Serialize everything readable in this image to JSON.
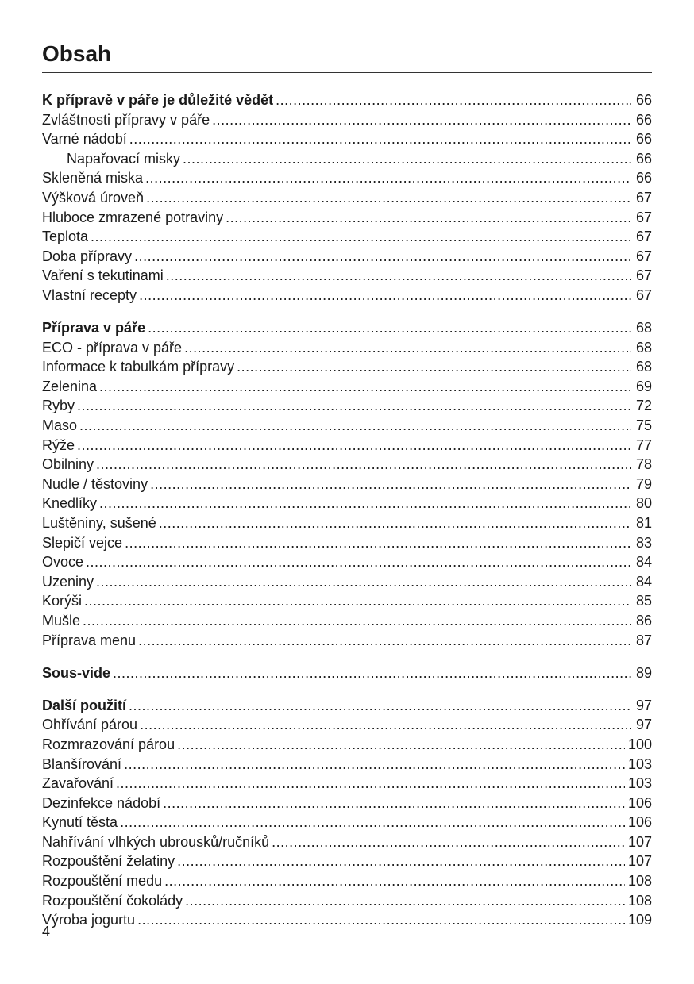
{
  "title": "Obsah",
  "page_number": "4",
  "groups": [
    {
      "entries": [
        {
          "label": "K přípravě v páře je důležité vědět",
          "page": "66",
          "bold": true
        },
        {
          "label": "Zvláštnosti přípravy v páře",
          "page": "66"
        },
        {
          "label": "Varné nádobí",
          "page": "66"
        },
        {
          "label": "Napařovací misky",
          "page": "66",
          "indent": true
        },
        {
          "label": "Skleněná miska",
          "page": "66"
        },
        {
          "label": "Výšková úroveň",
          "page": "67"
        },
        {
          "label": "Hluboce zmrazené potraviny",
          "page": "67"
        },
        {
          "label": "Teplota",
          "page": "67"
        },
        {
          "label": "Doba přípravy",
          "page": "67"
        },
        {
          "label": "Vaření s tekutinami",
          "page": "67"
        },
        {
          "label": "Vlastní recepty",
          "page": "67"
        }
      ]
    },
    {
      "entries": [
        {
          "label": "Příprava v páře",
          "page": "68",
          "bold": true
        },
        {
          "label": "ECO - příprava v páře",
          "page": "68"
        },
        {
          "label": "Informace k tabulkám přípravy",
          "page": "68"
        },
        {
          "label": "Zelenina",
          "page": "69"
        },
        {
          "label": "Ryby",
          "page": "72"
        },
        {
          "label": "Maso",
          "page": "75"
        },
        {
          "label": "Rýže",
          "page": "77"
        },
        {
          "label": "Obilniny",
          "page": "78"
        },
        {
          "label": "Nudle / těstoviny",
          "page": "79"
        },
        {
          "label": "Knedlíky",
          "page": "80"
        },
        {
          "label": "Luštěniny, sušené",
          "page": "81"
        },
        {
          "label": "Slepičí vejce",
          "page": "83"
        },
        {
          "label": "Ovoce",
          "page": "84"
        },
        {
          "label": "Uzeniny",
          "page": "84"
        },
        {
          "label": "Korýši",
          "page": "85"
        },
        {
          "label": "Mušle",
          "page": "86"
        },
        {
          "label": "Příprava menu",
          "page": "87"
        }
      ]
    },
    {
      "entries": [
        {
          "label": "Sous-vide",
          "page": "89",
          "bold": true
        }
      ]
    },
    {
      "entries": [
        {
          "label": "Další použití",
          "page": "97",
          "bold": true
        },
        {
          "label": "Ohřívání párou",
          "page": "97"
        },
        {
          "label": "Rozmrazování párou",
          "page": "100"
        },
        {
          "label": "Blanšírování",
          "page": "103"
        },
        {
          "label": "Zavařování",
          "page": "103"
        },
        {
          "label": "Dezinfekce nádobí",
          "page": "106"
        },
        {
          "label": "Kynutí těsta",
          "page": "106"
        },
        {
          "label": "Nahřívání vlhkých ubrousků/ručníků",
          "page": "107"
        },
        {
          "label": "Rozpouštění želatiny",
          "page": "107"
        },
        {
          "label": "Rozpouštění medu",
          "page": "108"
        },
        {
          "label": "Rozpouštění čokolády",
          "page": "108"
        },
        {
          "label": "Výroba jogurtu",
          "page": "109"
        }
      ]
    }
  ]
}
